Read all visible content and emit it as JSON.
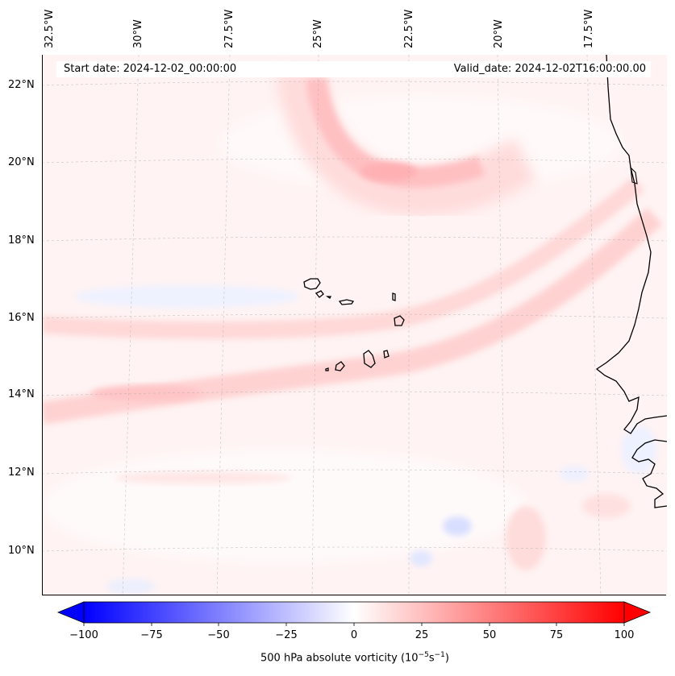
{
  "map": {
    "lon_labels": [
      "32.5°W",
      "30°W",
      "27.5°W",
      "25°W",
      "22.5°W",
      "20°W",
      "17.5°W"
    ],
    "lat_labels": [
      "22°N",
      "20°N",
      "18°N",
      "16°N",
      "14°N",
      "12°N",
      "10°N"
    ],
    "start_date": "Start date: 2024-12-02_00:00:00",
    "valid_date": "Valid_date: 2024-12-02T16:00:00.00"
  },
  "colorbar": {
    "ticks": [
      "−100",
      "−75",
      "−50",
      "−25",
      "0",
      "25",
      "50",
      "75",
      "100"
    ],
    "title_prefix": "500 hPa absolute vorticity (10",
    "title_exp1": "−5",
    "title_mid": "s",
    "title_exp2": "−1",
    "title_suffix": ")",
    "color_min": "#0000ff",
    "color_mid": "#ffffff",
    "color_max": "#ff0000"
  }
}
